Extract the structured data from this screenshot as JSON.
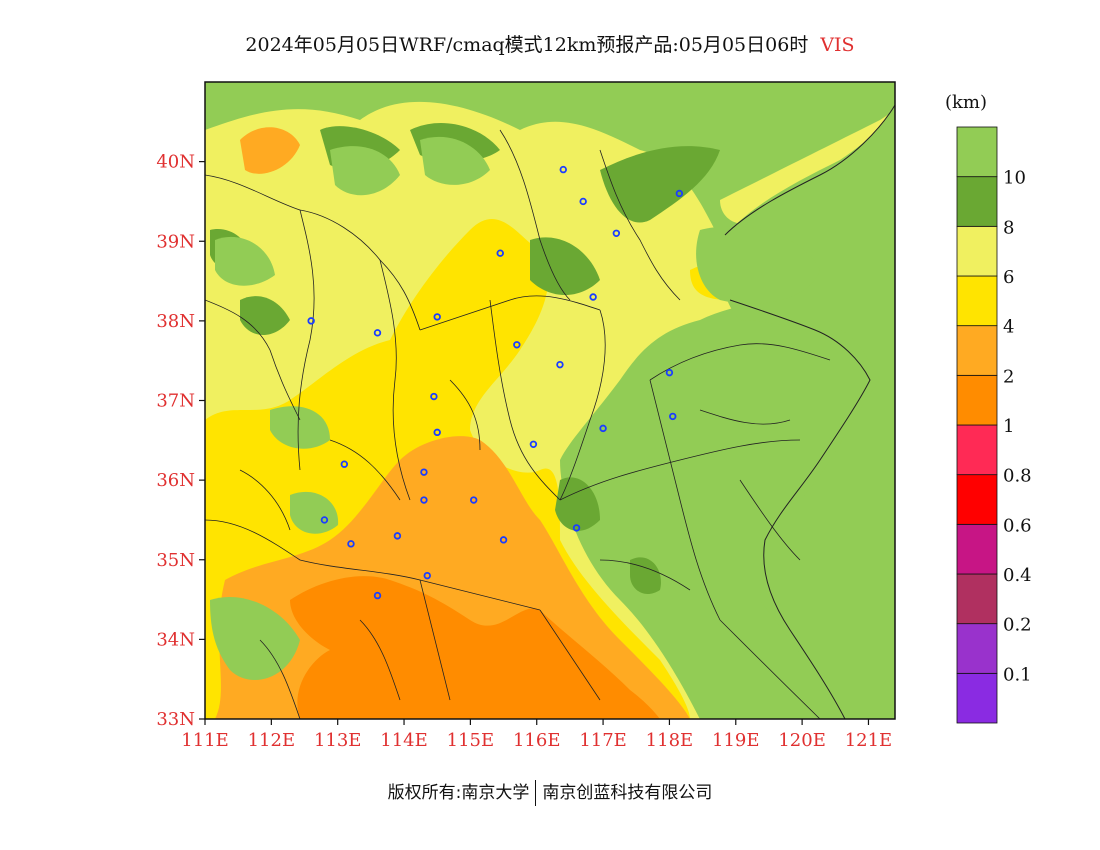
{
  "title": {
    "main": "2024年05月05日WRF/cmaq模式12km预报产品:05月05日06时",
    "variable": "VIS"
  },
  "axes": {
    "latitudes": [
      "33N",
      "34N",
      "35N",
      "36N",
      "37N",
      "38N",
      "39N",
      "40N"
    ],
    "longitudes": [
      "111E",
      "112E",
      "113E",
      "114E",
      "115E",
      "116E",
      "117E",
      "118E",
      "119E",
      "120E",
      "121E"
    ]
  },
  "colorbar": {
    "unit": "(km)",
    "levels": [
      "0.1",
      "0.2",
      "0.4",
      "0.6",
      "0.8",
      "1",
      "2",
      "4",
      "6",
      "8",
      "10"
    ],
    "colors": [
      "#8a2be2",
      "#9932cc",
      "#b03060",
      "#c71585",
      "#ff0000",
      "#ff2a55",
      "#ff8c00",
      "#ffaa22",
      "#ffe400",
      "#f0f060",
      "#6aa833",
      "#92cc55"
    ]
  },
  "cities": [
    {
      "lon": 112.6,
      "lat": 38.0
    },
    {
      "lon": 113.6,
      "lat": 37.85
    },
    {
      "lon": 114.5,
      "lat": 38.05
    },
    {
      "lon": 114.45,
      "lat": 37.05
    },
    {
      "lon": 114.5,
      "lat": 36.6
    },
    {
      "lon": 114.3,
      "lat": 36.1
    },
    {
      "lon": 114.3,
      "lat": 35.75
    },
    {
      "lon": 115.05,
      "lat": 35.75
    },
    {
      "lon": 113.9,
      "lat": 35.3
    },
    {
      "lon": 113.1,
      "lat": 36.2
    },
    {
      "lon": 112.8,
      "lat": 35.5
    },
    {
      "lon": 113.2,
      "lat": 35.2
    },
    {
      "lon": 114.35,
      "lat": 34.8
    },
    {
      "lon": 113.6,
      "lat": 34.55
    },
    {
      "lon": 115.5,
      "lat": 35.25
    },
    {
      "lon": 115.95,
      "lat": 36.45
    },
    {
      "lon": 115.7,
      "lat": 37.7
    },
    {
      "lon": 116.35,
      "lat": 37.45
    },
    {
      "lon": 117.0,
      "lat": 36.65
    },
    {
      "lon": 116.6,
      "lat": 35.4
    },
    {
      "lon": 118.0,
      "lat": 37.35
    },
    {
      "lon": 118.05,
      "lat": 36.8
    },
    {
      "lon": 116.85,
      "lat": 38.3
    },
    {
      "lon": 117.2,
      "lat": 39.1
    },
    {
      "lon": 118.15,
      "lat": 39.6
    },
    {
      "lon": 116.4,
      "lat": 39.9
    },
    {
      "lon": 116.7,
      "lat": 39.5
    },
    {
      "lon": 115.45,
      "lat": 38.85
    }
  ],
  "footer": {
    "left": "版权所有:南京大学",
    "right": "南京创蓝科技有限公司"
  }
}
